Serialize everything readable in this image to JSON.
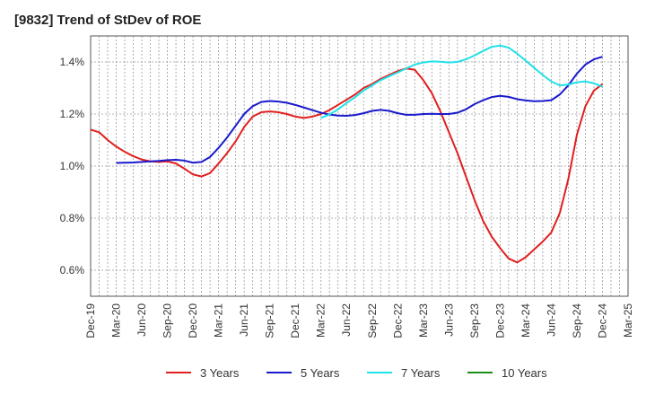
{
  "chart_data": {
    "type": "line",
    "title": "[9832]  Trend of StDev of ROE",
    "xlabel": "",
    "ylabel": "",
    "y_unit": "%",
    "ylim": [
      0.5,
      1.5
    ],
    "yticks": [
      0.6,
      0.8,
      1.0,
      1.2,
      1.4
    ],
    "ytick_labels": [
      "0.6%",
      "0.8%",
      "1.0%",
      "1.2%",
      "1.4%"
    ],
    "x_range": [
      "2019-12",
      "2025-03"
    ],
    "x_ticks": [
      "Dec-19",
      "Mar-20",
      "Jun-20",
      "Sep-20",
      "Dec-20",
      "Mar-21",
      "Jun-21",
      "Sep-21",
      "Dec-21",
      "Mar-22",
      "Jun-22",
      "Sep-22",
      "Dec-22",
      "Mar-23",
      "Jun-23",
      "Sep-23",
      "Dec-23",
      "Mar-24",
      "Jun-24",
      "Sep-24",
      "Dec-24",
      "Mar-25"
    ],
    "grid": true,
    "legend_position": "bottom",
    "series": [
      {
        "name": "3 Years",
        "color": "#e02020",
        "points": [
          [
            "2019-12",
            1.14
          ],
          [
            "2020-01",
            1.13
          ],
          [
            "2020-02",
            1.1
          ],
          [
            "2020-03",
            1.075
          ],
          [
            "2020-04",
            1.055
          ],
          [
            "2020-05",
            1.038
          ],
          [
            "2020-06",
            1.025
          ],
          [
            "2020-07",
            1.018
          ],
          [
            "2020-08",
            1.016
          ],
          [
            "2020-09",
            1.018
          ],
          [
            "2020-10",
            1.01
          ],
          [
            "2020-11",
            0.99
          ],
          [
            "2020-12",
            0.968
          ],
          [
            "2021-01",
            0.96
          ],
          [
            "2021-02",
            0.973
          ],
          [
            "2021-03",
            1.01
          ],
          [
            "2021-04",
            1.05
          ],
          [
            "2021-05",
            1.095
          ],
          [
            "2021-06",
            1.15
          ],
          [
            "2021-07",
            1.19
          ],
          [
            "2021-08",
            1.207
          ],
          [
            "2021-09",
            1.21
          ],
          [
            "2021-10",
            1.207
          ],
          [
            "2021-11",
            1.2
          ],
          [
            "2021-12",
            1.19
          ],
          [
            "2022-01",
            1.185
          ],
          [
            "2022-02",
            1.19
          ],
          [
            "2022-03",
            1.2
          ],
          [
            "2022-04",
            1.215
          ],
          [
            "2022-05",
            1.235
          ],
          [
            "2022-06",
            1.255
          ],
          [
            "2022-07",
            1.275
          ],
          [
            "2022-08",
            1.3
          ],
          [
            "2022-09",
            1.315
          ],
          [
            "2022-10",
            1.335
          ],
          [
            "2022-11",
            1.35
          ],
          [
            "2022-12",
            1.365
          ],
          [
            "2023-01",
            1.375
          ],
          [
            "2023-02",
            1.37
          ],
          [
            "2023-03",
            1.33
          ],
          [
            "2023-04",
            1.28
          ],
          [
            "2023-05",
            1.21
          ],
          [
            "2023-06",
            1.13
          ],
          [
            "2023-07",
            1.05
          ],
          [
            "2023-08",
            0.96
          ],
          [
            "2023-09",
            0.87
          ],
          [
            "2023-10",
            0.79
          ],
          [
            "2023-11",
            0.73
          ],
          [
            "2023-12",
            0.685
          ],
          [
            "2024-01",
            0.645
          ],
          [
            "2024-02",
            0.63
          ],
          [
            "2024-03",
            0.65
          ],
          [
            "2024-04",
            0.68
          ],
          [
            "2024-05",
            0.71
          ],
          [
            "2024-06",
            0.745
          ],
          [
            "2024-07",
            0.82
          ],
          [
            "2024-08",
            0.95
          ],
          [
            "2024-09",
            1.12
          ],
          [
            "2024-10",
            1.23
          ],
          [
            "2024-11",
            1.29
          ],
          [
            "2024-12",
            1.315
          ]
        ]
      },
      {
        "name": "5 Years",
        "color": "#1a1acc",
        "points": [
          [
            "2020-03",
            1.012
          ],
          [
            "2020-04",
            1.013
          ],
          [
            "2020-05",
            1.014
          ],
          [
            "2020-06",
            1.016
          ],
          [
            "2020-07",
            1.018
          ],
          [
            "2020-08",
            1.02
          ],
          [
            "2020-09",
            1.023
          ],
          [
            "2020-10",
            1.024
          ],
          [
            "2020-11",
            1.021
          ],
          [
            "2020-12",
            1.013
          ],
          [
            "2021-01",
            1.016
          ],
          [
            "2021-02",
            1.035
          ],
          [
            "2021-03",
            1.07
          ],
          [
            "2021-04",
            1.11
          ],
          [
            "2021-05",
            1.155
          ],
          [
            "2021-06",
            1.2
          ],
          [
            "2021-07",
            1.23
          ],
          [
            "2021-08",
            1.246
          ],
          [
            "2021-09",
            1.25
          ],
          [
            "2021-10",
            1.248
          ],
          [
            "2021-11",
            1.243
          ],
          [
            "2021-12",
            1.235
          ],
          [
            "2022-01",
            1.225
          ],
          [
            "2022-02",
            1.215
          ],
          [
            "2022-03",
            1.205
          ],
          [
            "2022-04",
            1.198
          ],
          [
            "2022-05",
            1.194
          ],
          [
            "2022-06",
            1.193
          ],
          [
            "2022-07",
            1.196
          ],
          [
            "2022-08",
            1.203
          ],
          [
            "2022-09",
            1.212
          ],
          [
            "2022-10",
            1.216
          ],
          [
            "2022-11",
            1.212
          ],
          [
            "2022-12",
            1.203
          ],
          [
            "2023-01",
            1.197
          ],
          [
            "2023-02",
            1.197
          ],
          [
            "2023-03",
            1.2
          ],
          [
            "2023-04",
            1.201
          ],
          [
            "2023-05",
            1.2
          ],
          [
            "2023-06",
            1.2
          ],
          [
            "2023-07",
            1.205
          ],
          [
            "2023-08",
            1.218
          ],
          [
            "2023-09",
            1.238
          ],
          [
            "2023-10",
            1.253
          ],
          [
            "2023-11",
            1.265
          ],
          [
            "2023-12",
            1.27
          ],
          [
            "2024-01",
            1.266
          ],
          [
            "2024-02",
            1.257
          ],
          [
            "2024-03",
            1.252
          ],
          [
            "2024-04",
            1.249
          ],
          [
            "2024-05",
            1.25
          ],
          [
            "2024-06",
            1.253
          ],
          [
            "2024-07",
            1.275
          ],
          [
            "2024-08",
            1.31
          ],
          [
            "2024-09",
            1.355
          ],
          [
            "2024-10",
            1.39
          ],
          [
            "2024-11",
            1.41
          ],
          [
            "2024-12",
            1.42
          ]
        ]
      },
      {
        "name": "7 Years",
        "color": "#22e0e8",
        "points": [
          [
            "2022-03",
            1.185
          ],
          [
            "2022-04",
            1.198
          ],
          [
            "2022-05",
            1.218
          ],
          [
            "2022-06",
            1.242
          ],
          [
            "2022-07",
            1.265
          ],
          [
            "2022-08",
            1.29
          ],
          [
            "2022-09",
            1.31
          ],
          [
            "2022-10",
            1.33
          ],
          [
            "2022-11",
            1.345
          ],
          [
            "2022-12",
            1.36
          ],
          [
            "2023-01",
            1.375
          ],
          [
            "2023-02",
            1.39
          ],
          [
            "2023-03",
            1.398
          ],
          [
            "2023-04",
            1.402
          ],
          [
            "2023-05",
            1.401
          ],
          [
            "2023-06",
            1.398
          ],
          [
            "2023-07",
            1.4
          ],
          [
            "2023-08",
            1.41
          ],
          [
            "2023-09",
            1.425
          ],
          [
            "2023-10",
            1.442
          ],
          [
            "2023-11",
            1.458
          ],
          [
            "2023-12",
            1.463
          ],
          [
            "2024-01",
            1.455
          ],
          [
            "2024-02",
            1.432
          ],
          [
            "2024-03",
            1.405
          ],
          [
            "2024-04",
            1.377
          ],
          [
            "2024-05",
            1.35
          ],
          [
            "2024-06",
            1.325
          ],
          [
            "2024-07",
            1.31
          ],
          [
            "2024-08",
            1.313
          ],
          [
            "2024-09",
            1.322
          ],
          [
            "2024-10",
            1.325
          ],
          [
            "2024-11",
            1.318
          ],
          [
            "2024-12",
            1.305
          ]
        ]
      },
      {
        "name": "10 Years",
        "color": "#1e8c1e",
        "points": []
      }
    ]
  }
}
